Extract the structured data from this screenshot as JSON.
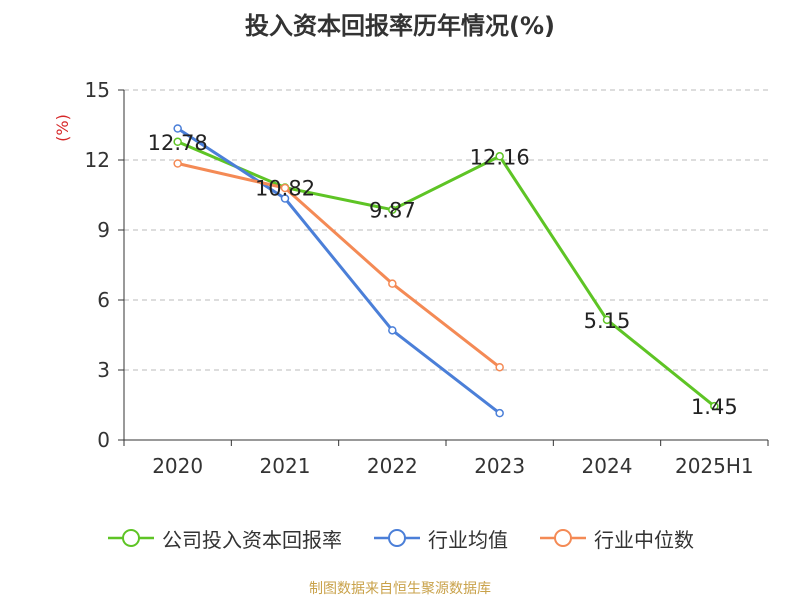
{
  "title": "投入资本回报率历年情况(%)",
  "footer": "制图数据来自恒生聚源数据库",
  "chart_data": {
    "type": "line",
    "categories": [
      "2020",
      "2021",
      "2022",
      "2023",
      "2024",
      "2025H1"
    ],
    "ylabel": "(%)",
    "ylim": [
      0,
      15
    ],
    "yticks": [
      0,
      3,
      6,
      9,
      12,
      15
    ],
    "grid": true,
    "legend_position": "bottom",
    "series": [
      {
        "name": "公司投入资本回报率",
        "color": "#5ec425",
        "values": [
          12.78,
          10.82,
          9.87,
          12.16,
          5.15,
          1.45
        ],
        "data_labels": [
          "12.78",
          "10.82",
          "9.87",
          "12.16",
          "5.15",
          "1.45"
        ]
      },
      {
        "name": "行业均值",
        "color": "#4b7fd8",
        "values": [
          13.35,
          10.35,
          4.7,
          1.15,
          null,
          null
        ]
      },
      {
        "name": "行业中位数",
        "color": "#f48a55",
        "values": [
          11.85,
          10.8,
          6.7,
          3.12,
          null,
          null
        ]
      }
    ]
  }
}
